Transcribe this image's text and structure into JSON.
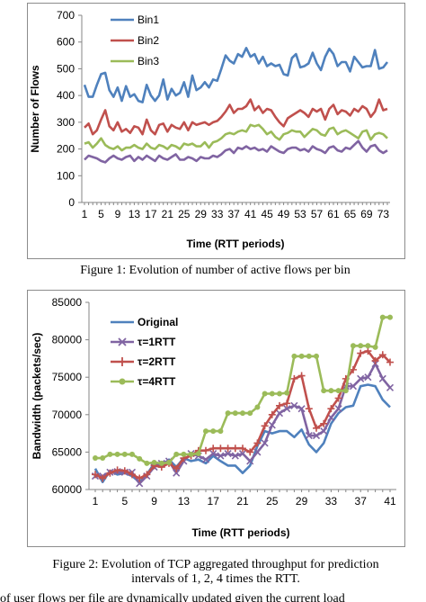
{
  "figure1": {
    "caption": "Figure 1: Evolution of number of active flows per bin",
    "chart_data": {
      "type": "line",
      "title": "",
      "xlabel": "Time (RTT periods)",
      "ylabel": "Number of Flows",
      "ylim": [
        0,
        700
      ],
      "yticks": [
        0,
        100,
        200,
        300,
        400,
        500,
        600,
        700
      ],
      "xticks": [
        1,
        5,
        9,
        13,
        17,
        21,
        25,
        29,
        33,
        37,
        41,
        45,
        49,
        53,
        57,
        61,
        65,
        69,
        73
      ],
      "x": [
        1,
        2,
        3,
        4,
        5,
        6,
        7,
        8,
        9,
        10,
        11,
        12,
        13,
        14,
        15,
        16,
        17,
        18,
        19,
        20,
        21,
        22,
        23,
        24,
        25,
        26,
        27,
        28,
        29,
        30,
        31,
        32,
        33,
        34,
        35,
        36,
        37,
        38,
        39,
        40,
        41,
        42,
        43,
        44,
        45,
        46,
        47,
        48,
        49,
        50,
        51,
        52,
        53,
        54,
        55,
        56,
        57,
        58,
        59,
        60,
        61,
        62,
        63,
        64,
        65,
        66,
        67,
        68,
        69,
        70,
        71,
        72,
        73,
        74
      ],
      "legend": "top-left",
      "grid": false,
      "series": [
        {
          "name": "Bin1",
          "color": "#4f81bd",
          "values": [
            440,
            395,
            395,
            440,
            480,
            485,
            420,
            395,
            430,
            380,
            435,
            395,
            405,
            380,
            375,
            440,
            400,
            380,
            400,
            460,
            385,
            425,
            400,
            410,
            450,
            395,
            475,
            420,
            430,
            450,
            430,
            460,
            455,
            500,
            550,
            530,
            520,
            555,
            545,
            578,
            545,
            555,
            520,
            545,
            510,
            520,
            510,
            515,
            480,
            475,
            540,
            555,
            505,
            510,
            520,
            560,
            520,
            495,
            545,
            575,
            555,
            510,
            525,
            525,
            490,
            545,
            525,
            505,
            510,
            510,
            570,
            500,
            505,
            525
          ]
        },
        {
          "name": "Bin2",
          "color": "#c0504d",
          "values": [
            280,
            295,
            255,
            270,
            310,
            345,
            285,
            270,
            300,
            265,
            275,
            260,
            285,
            280,
            255,
            310,
            270,
            255,
            290,
            295,
            265,
            290,
            280,
            275,
            300,
            270,
            300,
            290,
            295,
            300,
            290,
            300,
            305,
            320,
            340,
            365,
            335,
            350,
            350,
            360,
            385,
            345,
            360,
            335,
            350,
            345,
            320,
            300,
            285,
            315,
            325,
            335,
            345,
            335,
            320,
            350,
            340,
            350,
            310,
            350,
            365,
            330,
            345,
            340,
            325,
            350,
            340,
            360,
            350,
            320,
            340,
            385,
            345,
            350
          ]
        },
        {
          "name": "Bin3",
          "color": "#9bbb59",
          "values": [
            220,
            225,
            205,
            220,
            240,
            215,
            205,
            200,
            210,
            195,
            205,
            205,
            215,
            205,
            200,
            220,
            205,
            200,
            215,
            210,
            200,
            215,
            210,
            200,
            220,
            215,
            220,
            210,
            210,
            225,
            205,
            225,
            230,
            240,
            255,
            260,
            255,
            265,
            270,
            265,
            290,
            285,
            290,
            275,
            255,
            265,
            245,
            235,
            255,
            260,
            270,
            265,
            265,
            245,
            260,
            275,
            270,
            255,
            250,
            275,
            280,
            255,
            265,
            270,
            260,
            250,
            240,
            265,
            270,
            235,
            255,
            260,
            255,
            240
          ]
        },
        {
          "name": "",
          "color": "#8064a2",
          "values": [
            160,
            175,
            170,
            165,
            155,
            150,
            165,
            175,
            165,
            160,
            170,
            175,
            155,
            170,
            160,
            175,
            165,
            155,
            175,
            165,
            160,
            170,
            180,
            160,
            160,
            170,
            165,
            155,
            170,
            165,
            165,
            175,
            170,
            180,
            195,
            200,
            185,
            205,
            200,
            210,
            200,
            205,
            195,
            200,
            190,
            210,
            200,
            190,
            185,
            200,
            205,
            205,
            195,
            200,
            190,
            210,
            200,
            195,
            185,
            205,
            210,
            195,
            190,
            205,
            200,
            215,
            230,
            205,
            190,
            210,
            215,
            195,
            185,
            195
          ]
        }
      ]
    }
  },
  "figure2": {
    "caption_line1": "Figure 2: Evolution of TCP aggregated throughput for prediction",
    "caption_line2": "intervals of 1, 2, 4 times the RTT.",
    "chart_data": {
      "type": "line",
      "title": "",
      "xlabel": "Time (RTT periods)",
      "ylabel": "Bandwidth (packets/sec)",
      "ylim": [
        60000,
        85000
      ],
      "yticks": [
        60000,
        65000,
        70000,
        75000,
        80000,
        85000
      ],
      "xticks": [
        1,
        5,
        9,
        13,
        17,
        21,
        25,
        29,
        33,
        37,
        41
      ],
      "x": [
        1,
        2,
        3,
        4,
        5,
        6,
        7,
        8,
        9,
        10,
        11,
        12,
        13,
        14,
        15,
        16,
        17,
        18,
        19,
        20,
        21,
        22,
        23,
        24,
        25,
        26,
        27,
        28,
        29,
        30,
        31,
        32,
        33,
        34,
        35,
        36,
        37,
        38,
        39,
        40,
        41
      ],
      "legend": "top-left",
      "grid": false,
      "series": [
        {
          "name": "Original",
          "color": "#4f81bd",
          "values": [
            62800,
            61000,
            62500,
            62000,
            62200,
            61800,
            61000,
            62000,
            63500,
            63200,
            64000,
            63000,
            64200,
            63800,
            64000,
            63500,
            64500,
            63800,
            63200,
            63200,
            62200,
            63200,
            65800,
            67800,
            67500,
            67800,
            67800,
            67000,
            68000,
            66000,
            65000,
            66200,
            68800,
            70200,
            71000,
            71200,
            73800,
            74000,
            73800,
            72000,
            71000
          ]
        },
        {
          "name": "τ=1RTT",
          "color": "#8064a2",
          "values": [
            61800,
            61800,
            62300,
            62400,
            62300,
            62300,
            60800,
            61800,
            63000,
            63500,
            63800,
            62200,
            63800,
            64800,
            64500,
            64000,
            64800,
            64500,
            64800,
            64500,
            64800,
            63800,
            65000,
            66200,
            68600,
            70200,
            70800,
            71200,
            70800,
            67200,
            67200,
            67800,
            69600,
            70800,
            73800,
            73800,
            74800,
            75000,
            76800,
            74800,
            73600
          ]
        },
        {
          "name": "τ=2RTT",
          "color": "#c0504d",
          "values": [
            62000,
            61500,
            62200,
            62600,
            62500,
            62000,
            61500,
            62000,
            63200,
            63000,
            63500,
            62800,
            64200,
            64500,
            65200,
            65200,
            65500,
            65500,
            65500,
            65500,
            65500,
            65000,
            66200,
            68500,
            70000,
            71200,
            71500,
            74800,
            75200,
            70800,
            68200,
            68800,
            70800,
            72200,
            74800,
            76000,
            78200,
            78500,
            77200,
            78000,
            77000
          ]
        },
        {
          "name": "τ=4RTT",
          "color": "#9bbb59",
          "values": [
            64200,
            64200,
            64700,
            64700,
            64700,
            64700,
            64100,
            63500,
            63600,
            63500,
            63600,
            64700,
            64700,
            64700,
            64800,
            67800,
            67800,
            67800,
            70200,
            70200,
            70200,
            70200,
            71000,
            72800,
            72800,
            72800,
            72900,
            77800,
            77800,
            77800,
            77800,
            73200,
            73200,
            73200,
            73200,
            79200,
            79200,
            79200,
            79000,
            83000,
            83000
          ]
        }
      ]
    }
  },
  "partial_text": "of user flows per file are dynamically updated given the current load"
}
